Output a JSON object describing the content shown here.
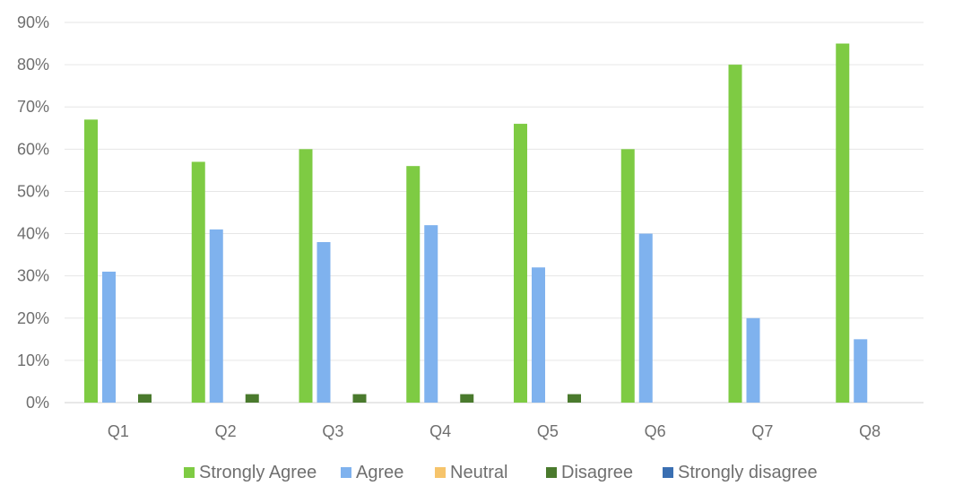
{
  "chart_data": {
    "type": "bar",
    "title": "",
    "xlabel": "",
    "ylabel": "",
    "categories": [
      "Q1",
      "Q2",
      "Q3",
      "Q4",
      "Q5",
      "Q6",
      "Q7",
      "Q8"
    ],
    "series": [
      {
        "name": "Strongly Agree",
        "color": "#7ecb43",
        "values": [
          67,
          57,
          60,
          56,
          66,
          60,
          80,
          85
        ]
      },
      {
        "name": "Agree",
        "color": "#7fb2ee",
        "values": [
          31,
          41,
          38,
          42,
          32,
          40,
          20,
          15
        ]
      },
      {
        "name": "Neutral",
        "color": "#f6c46b",
        "values": [
          0,
          0,
          0,
          0,
          0,
          0,
          0,
          0
        ]
      },
      {
        "name": "Disagree",
        "color": "#4a7a2d",
        "values": [
          2,
          2,
          2,
          2,
          2,
          0,
          0,
          0
        ]
      },
      {
        "name": "Strongly disagree",
        "color": "#3a6fb2",
        "values": [
          0,
          0,
          0,
          0,
          0,
          0,
          0,
          0
        ]
      }
    ],
    "ylim": [
      0,
      90
    ],
    "yticks": [
      "0%",
      "10%",
      "20%",
      "30%",
      "40%",
      "50%",
      "60%",
      "70%",
      "80%",
      "90%"
    ],
    "grid": true,
    "legend": "bottom"
  }
}
